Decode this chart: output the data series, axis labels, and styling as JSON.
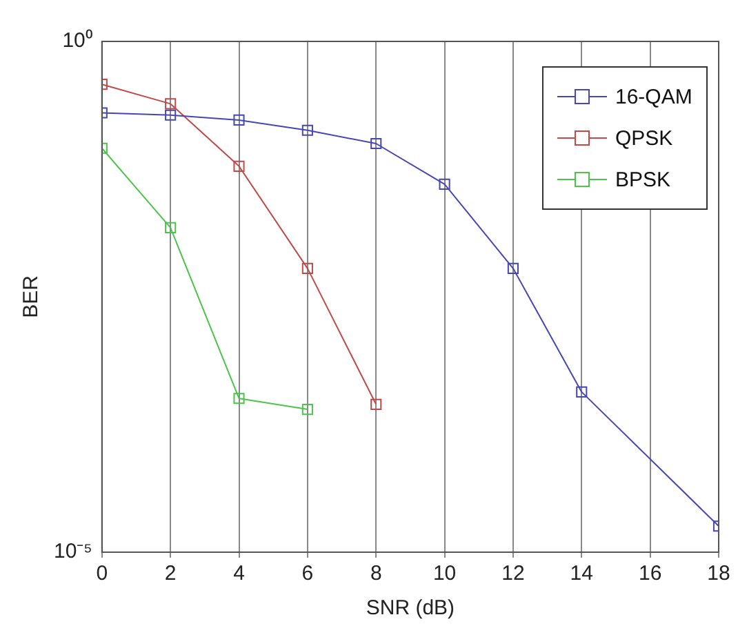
{
  "chart_data": {
    "type": "line",
    "xlabel": "SNR (dB)",
    "ylabel": "BER",
    "x": [
      0,
      2,
      4,
      6,
      8,
      10,
      12,
      14,
      16,
      18
    ],
    "series": [
      {
        "name": "16-QAM",
        "color": "#4646b4",
        "values": [
          0.2,
          0.19,
          0.17,
          0.135,
          0.1,
          0.04,
          0.006,
          0.00037,
          null,
          1.8e-05
        ]
      },
      {
        "name": "QPSK",
        "color": "#c04a4a",
        "values": [
          0.38,
          0.245,
          0.06,
          0.006,
          0.00028,
          null,
          null,
          null,
          null,
          null
        ]
      },
      {
        "name": "BPSK",
        "color": "#4cc44c",
        "values": [
          0.09,
          0.015,
          0.00032,
          0.00025,
          null,
          null,
          null,
          null,
          null,
          null
        ]
      }
    ],
    "log": "y",
    "xlim": [
      0,
      18
    ],
    "xticks": [
      0,
      2,
      4,
      6,
      8,
      10,
      12,
      14,
      16,
      18
    ],
    "ylim": [
      1e-05,
      1
    ],
    "yticks": [
      {
        "value": 1,
        "label": "10⁰"
      },
      {
        "value": 1e-05,
        "label": "10⁻⁵"
      }
    ],
    "grid": "x",
    "legend": "top right",
    "marker": "square",
    "line_style": "solid"
  }
}
